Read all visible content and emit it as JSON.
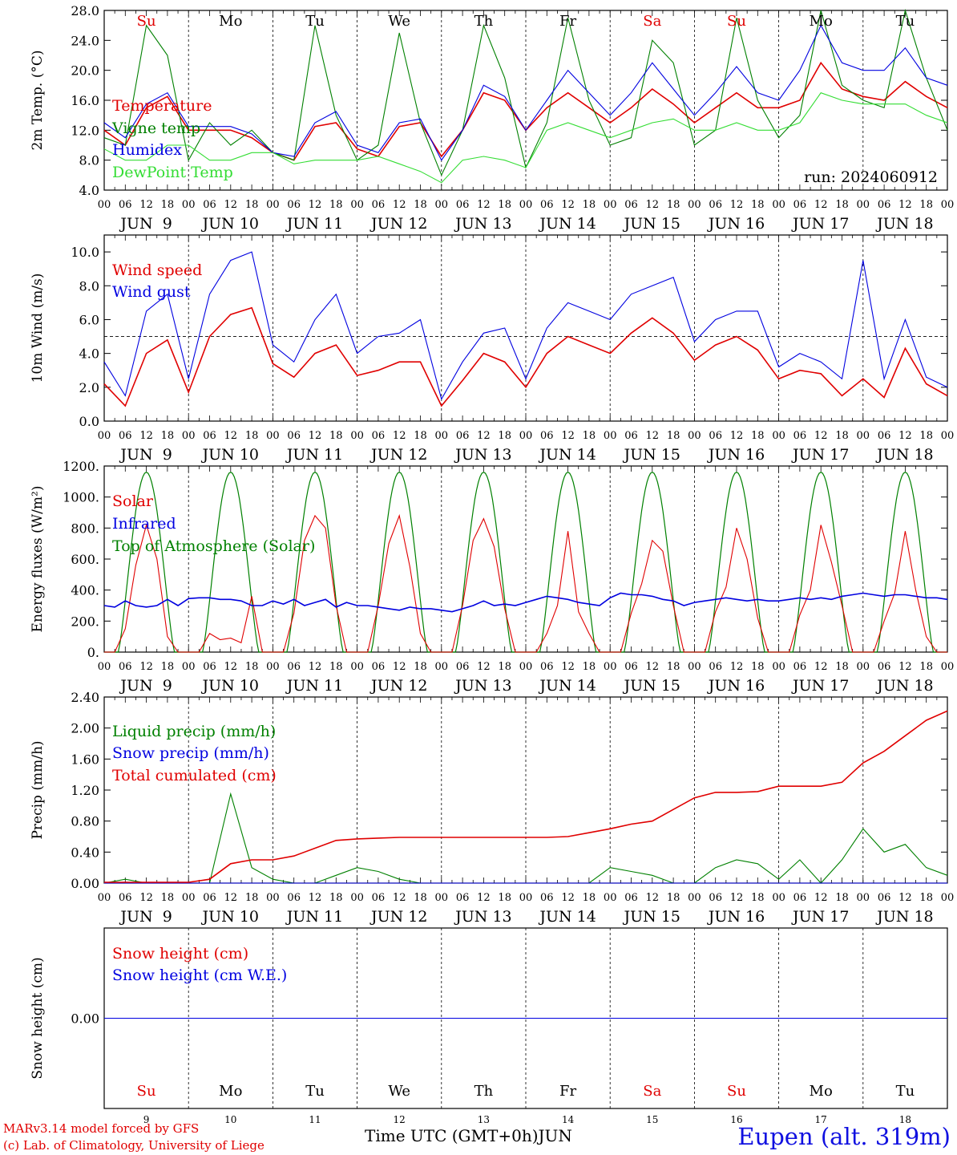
{
  "chart_data": {
    "type": "line",
    "panels": [
      {
        "ylabel": "2m Temp. (°C)",
        "ylim": [
          4,
          28
        ],
        "yticks": [
          "4.0",
          "8.0",
          "12.0",
          "16.0",
          "20.0",
          "24.0",
          "28.0"
        ],
        "legend": [
          "Temperature",
          "Vigne temp",
          "Humidex",
          "DewPoint Temp"
        ],
        "annotation": "run: 2024060912",
        "x_hours": [
          0,
          6,
          12,
          18,
          24,
          30,
          36,
          42,
          48,
          54,
          60,
          66,
          72,
          78,
          84,
          90,
          96,
          102,
          108,
          114,
          120,
          126,
          132,
          138,
          144,
          150,
          156,
          162,
          168,
          174,
          180,
          186,
          192,
          198,
          204,
          210,
          216,
          222,
          228,
          234,
          240
        ],
        "series": [
          {
            "name": "Temperature",
            "color": "#e00000",
            "values": [
              12,
              10,
              15,
              16.5,
              12,
              12,
              12,
              11,
              9,
              8,
              12.5,
              13,
              9.5,
              8.5,
              12.5,
              13,
              8.5,
              12,
              17,
              16,
              12,
              15,
              17,
              15,
              13,
              15,
              17.5,
              15.5,
              13,
              15,
              17,
              15,
              15,
              16,
              21,
              17.5,
              16.5,
              16,
              18.5,
              16.5,
              15
            ]
          },
          {
            "name": "Vigne temp",
            "color": "#008000",
            "values": [
              11,
              10,
              26,
              22,
              8,
              13,
              10,
              12,
              9,
              8,
              26,
              14,
              8,
              10,
              25,
              13,
              6,
              12,
              26,
              19,
              7,
              13,
              27,
              16,
              10,
              11,
              24,
              21,
              10,
              12,
              27,
              16,
              11,
              14,
              28,
              18,
              16,
              15,
              28,
              19,
              12
            ]
          },
          {
            "name": "Humidex",
            "color": "#0000e0",
            "values": [
              13,
              11,
              15.5,
              17,
              12.5,
              12.5,
              12.5,
              11.5,
              9,
              8.5,
              13,
              14.5,
              10,
              9,
              13,
              13.5,
              8,
              12,
              18,
              16.5,
              12,
              16,
              20,
              17,
              14,
              17,
              21,
              17.5,
              14,
              17,
              20.5,
              17,
              16,
              20,
              26,
              21,
              20,
              20,
              23,
              19,
              18
            ]
          },
          {
            "name": "DewPoint Temp",
            "color": "#33dd33",
            "values": [
              9.5,
              8,
              8,
              10,
              10,
              8,
              8,
              9,
              9,
              7.5,
              8,
              8,
              8,
              8.5,
              7.5,
              6.5,
              5,
              8,
              8.5,
              8,
              7,
              12,
              13,
              12,
              11,
              12,
              13,
              13.5,
              12,
              12,
              13,
              12,
              12,
              13,
              17,
              16,
              15.5,
              15.5,
              15.5,
              14,
              13
            ]
          }
        ]
      },
      {
        "ylabel": "10m Wind (m/s)",
        "ylim": [
          0,
          11
        ],
        "yticks": [
          "0.0",
          "2.0",
          "4.0",
          "6.0",
          "8.0",
          "10.0"
        ],
        "reference_line": 5.0,
        "legend": [
          "Wind speed",
          "Wind gust"
        ],
        "x_hours": [
          0,
          6,
          12,
          18,
          24,
          30,
          36,
          42,
          48,
          54,
          60,
          66,
          72,
          78,
          84,
          90,
          96,
          102,
          108,
          114,
          120,
          126,
          132,
          138,
          144,
          150,
          156,
          162,
          168,
          174,
          180,
          186,
          192,
          198,
          204,
          210,
          216,
          222,
          228,
          234,
          240
        ],
        "series": [
          {
            "name": "Wind speed",
            "color": "#e00000",
            "values": [
              2.2,
              0.9,
              4,
              4.8,
              1.7,
              5,
              6.3,
              6.7,
              3.4,
              2.6,
              4,
              4.5,
              2.7,
              3,
              3.5,
              3.5,
              0.9,
              2.4,
              4,
              3.5,
              2,
              4,
              5,
              4.5,
              4,
              5.2,
              6.1,
              5.2,
              3.6,
              4.5,
              5,
              4.2,
              2.5,
              3,
              2.8,
              1.5,
              2.5,
              1.4,
              4.3,
              2.2,
              1.5
            ]
          },
          {
            "name": "Wind gust",
            "color": "#0000e0",
            "values": [
              3.5,
              1.5,
              6.5,
              7.5,
              2.5,
              7.5,
              9.5,
              10,
              4.5,
              3.5,
              6,
              7.5,
              4,
              5,
              5.2,
              6,
              1.3,
              3.5,
              5.2,
              5.5,
              2.5,
              5.5,
              7,
              6.5,
              6,
              7.5,
              8,
              8.5,
              4.7,
              6,
              6.5,
              6.5,
              3.2,
              4,
              3.5,
              2.5,
              9.5,
              2.5,
              6,
              2.6,
              2
            ]
          }
        ]
      },
      {
        "ylabel": "Energy fluxes (W/m²)",
        "ylim": [
          0,
          1200
        ],
        "yticks": [
          "0.",
          "200.",
          "400.",
          "600.",
          "800.",
          "1000.",
          "1200."
        ],
        "legend": [
          "Solar",
          "Infrared",
          "Top of Atmosphere (Solar)"
        ],
        "toa_peak": 1160,
        "toa_daylight_hours": [
          4,
          20
        ],
        "x_hours": [
          0,
          3,
          6,
          9,
          12,
          15,
          18,
          21,
          24,
          27,
          30,
          33,
          36,
          39,
          42,
          45,
          48,
          51,
          54,
          57,
          60,
          63,
          66,
          69,
          72,
          75,
          78,
          81,
          84,
          87,
          90,
          93,
          96,
          99,
          102,
          105,
          108,
          111,
          114,
          117,
          120,
          123,
          126,
          129,
          132,
          135,
          138,
          141,
          144,
          147,
          150,
          153,
          156,
          159,
          162,
          165,
          168,
          171,
          174,
          177,
          180,
          183,
          186,
          189,
          192,
          195,
          198,
          201,
          204,
          207,
          210,
          213,
          216,
          219,
          222,
          225,
          228,
          231,
          234,
          237,
          240
        ],
        "series": [
          {
            "name": "Solar",
            "color": "#e00000",
            "values": [
              0,
              0,
              150,
              560,
              820,
              600,
              100,
              0,
              0,
              0,
              120,
              80,
              90,
              60,
              360,
              0,
              0,
              0,
              250,
              720,
              880,
              800,
              300,
              0,
              0,
              0,
              300,
              700,
              880,
              550,
              120,
              0,
              0,
              0,
              300,
              720,
              860,
              680,
              280,
              0,
              0,
              0,
              120,
              300,
              780,
              260,
              120,
              0,
              0,
              0,
              250,
              440,
              720,
              650,
              300,
              0,
              0,
              0,
              260,
              420,
              800,
              600,
              220,
              0,
              0,
              0,
              240,
              400,
              820,
              580,
              300,
              0,
              0,
              0,
              200,
              380,
              780,
              400,
              100,
              0,
              0
            ]
          },
          {
            "name": "Infrared",
            "color": "#0000e0",
            "values": [
              300,
              290,
              330,
              300,
              290,
              300,
              340,
              300,
              345,
              350,
              350,
              340,
              340,
              330,
              300,
              300,
              330,
              310,
              340,
              300,
              320,
              340,
              290,
              320,
              300,
              300,
              290,
              280,
              270,
              290,
              280,
              280,
              270,
              260,
              280,
              300,
              330,
              300,
              310,
              300,
              320,
              340,
              360,
              350,
              340,
              320,
              310,
              300,
              350,
              380,
              370,
              370,
              360,
              340,
              330,
              300,
              320,
              330,
              340,
              350,
              340,
              330,
              340,
              330,
              330,
              340,
              350,
              340,
              350,
              340,
              360,
              370,
              380,
              370,
              360,
              370,
              370,
              360,
              350,
              350,
              340
            ]
          }
        ]
      },
      {
        "ylabel": "Precip (mm/h)",
        "ylim": [
          0,
          2.4
        ],
        "yticks": [
          "0.00",
          "0.40",
          "0.80",
          "1.20",
          "1.60",
          "2.00",
          "2.40"
        ],
        "legend": [
          "Liquid precip (mm/h)",
          "Snow precip (mm/h)",
          "Total cumulated (cm)"
        ],
        "x_hours": [
          0,
          6,
          12,
          18,
          24,
          30,
          36,
          42,
          48,
          54,
          60,
          66,
          72,
          78,
          84,
          90,
          96,
          102,
          108,
          114,
          120,
          126,
          132,
          138,
          144,
          150,
          156,
          162,
          168,
          174,
          180,
          186,
          192,
          198,
          204,
          210,
          216,
          222,
          228,
          234,
          240
        ],
        "series": [
          {
            "name": "Liquid precip (mm/h)",
            "color": "#008000",
            "values": [
              0,
              0.05,
              0,
              0,
              0,
              0,
              1.15,
              0.2,
              0.05,
              0,
              0,
              0.1,
              0.2,
              0.15,
              0.05,
              0,
              0,
              0,
              0,
              0,
              0,
              0,
              0,
              0,
              0.2,
              0.15,
              0.1,
              0,
              0,
              0.2,
              0.3,
              0.25,
              0.05,
              0.3,
              0,
              0.3,
              0.7,
              0.4,
              0.5,
              0.2,
              0.1
            ]
          },
          {
            "name": "Snow precip (mm/h)",
            "color": "#0000e0",
            "values": [
              0,
              0,
              0,
              0,
              0,
              0,
              0,
              0,
              0,
              0,
              0,
              0,
              0,
              0,
              0,
              0,
              0,
              0,
              0,
              0,
              0,
              0,
              0,
              0,
              0,
              0,
              0,
              0,
              0,
              0,
              0,
              0,
              0,
              0,
              0,
              0,
              0,
              0,
              0,
              0,
              0
            ]
          },
          {
            "name": "Total cumulated (cm)",
            "color": "#e00000",
            "values": [
              0.01,
              0.01,
              0.01,
              0.01,
              0.01,
              0.05,
              0.25,
              0.3,
              0.3,
              0.35,
              0.45,
              0.55,
              0.57,
              0.58,
              0.59,
              0.59,
              0.59,
              0.59,
              0.59,
              0.59,
              0.59,
              0.59,
              0.6,
              0.65,
              0.7,
              0.76,
              0.8,
              0.95,
              1.1,
              1.17,
              1.17,
              1.18,
              1.25,
              1.25,
              1.25,
              1.3,
              1.55,
              1.7,
              1.9,
              2.1,
              2.22
            ]
          }
        ]
      },
      {
        "ylabel": "Snow height (cm)",
        "ylim": [
          -1,
          1
        ],
        "yticks": [
          "0.00"
        ],
        "legend": [
          "Snow height (cm)",
          "Snow height (cm W.E.)"
        ],
        "x_hours": [
          0,
          240
        ],
        "series": [
          {
            "name": "Snow height (cm)",
            "color": "#e00000",
            "values": [
              0,
              0
            ]
          },
          {
            "name": "Snow height (cm W.E.)",
            "color": "#0000e0",
            "values": [
              0,
              0
            ]
          }
        ]
      }
    ],
    "x_tick_labels": [
      "00",
      "06",
      "12",
      "18"
    ],
    "date_labels": [
      "JUN  9",
      "JUN 10",
      "JUN 11",
      "JUN 12",
      "JUN 13",
      "JUN 14",
      "JUN 15",
      "JUN 16",
      "JUN 17",
      "JUN 18"
    ],
    "weekdays": [
      "Su",
      "Mo",
      "Tu",
      "We",
      "Th",
      "Fr",
      "Sa",
      "Su",
      "Mo",
      "Tu"
    ],
    "weekend_flags": [
      true,
      false,
      false,
      false,
      false,
      false,
      true,
      true,
      false,
      false
    ],
    "bottom_day_numbers": [
      "9",
      "10",
      "11",
      "12",
      "13",
      "14",
      "15",
      "16",
      "17",
      "18"
    ],
    "xlabel": "Time UTC (GMT+0h)",
    "xlabel_month": "JUN"
  },
  "footer": {
    "credit_line1": "MARv3.14 model forced by GFS",
    "credit_line2": "(c) Lab. of Climatology, University of Liege",
    "station": "Eupen (alt. 319m)"
  }
}
